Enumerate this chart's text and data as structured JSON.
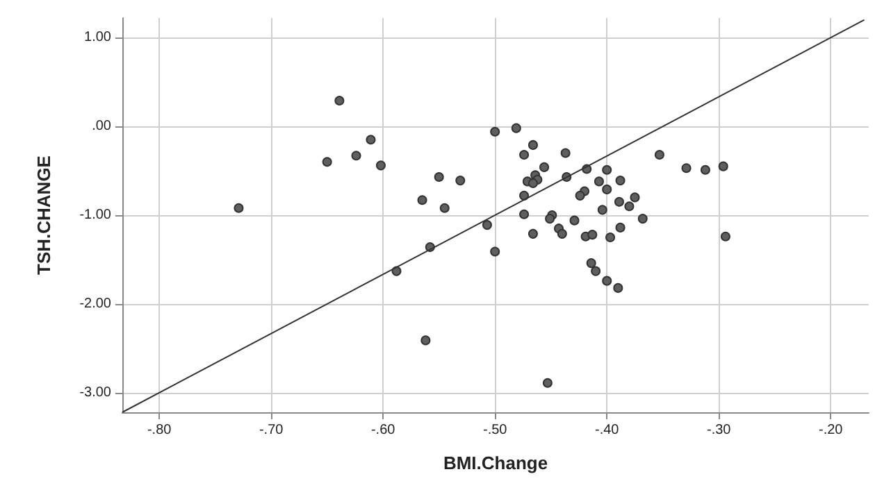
{
  "chart_data": {
    "type": "scatter",
    "xlabel": "BMI.Change",
    "ylabel": "TSH.CHANGE",
    "xlim": [
      -0.833,
      -0.166
    ],
    "ylim": [
      -3.22,
      1.22
    ],
    "xticks": [
      {
        "value": -0.8,
        "label": "-.80"
      },
      {
        "value": -0.7,
        "label": "-.70"
      },
      {
        "value": -0.6,
        "label": "-.60"
      },
      {
        "value": -0.5,
        "label": "-.50"
      },
      {
        "value": -0.4,
        "label": "-.40"
      },
      {
        "value": -0.3,
        "label": "-.30"
      },
      {
        "value": -0.2,
        "label": "-.20"
      }
    ],
    "yticks": [
      {
        "value": -3,
        "label": "-3.00"
      },
      {
        "value": -2,
        "label": "-2.00"
      },
      {
        "value": -1,
        "label": "-1.00"
      },
      {
        "value": 0,
        "label": ".00"
      },
      {
        "value": 1,
        "label": "1.00"
      }
    ],
    "grid": true,
    "marker": "circle",
    "series": [
      {
        "color": "#5f5f5f",
        "x": [
          -0.639,
          -0.5,
          -0.611,
          -0.624,
          -0.65,
          -0.602,
          -0.55,
          -0.531,
          -0.565,
          -0.545,
          -0.729,
          -0.507,
          -0.558,
          -0.5,
          -0.588,
          -0.562,
          -0.481,
          -0.466,
          -0.474,
          -0.437,
          -0.456,
          -0.418,
          -0.4,
          -0.353,
          -0.329,
          -0.312,
          -0.296,
          -0.464,
          -0.462,
          -0.471,
          -0.466,
          -0.436,
          -0.407,
          -0.388,
          -0.42,
          -0.424,
          -0.474,
          -0.4,
          -0.389,
          -0.375,
          -0.38,
          -0.404,
          -0.474,
          -0.449,
          -0.451,
          -0.429,
          -0.368,
          -0.443,
          -0.44,
          -0.466,
          -0.419,
          -0.413,
          -0.397,
          -0.388,
          -0.294,
          -0.414,
          -0.41,
          -0.4,
          -0.39,
          -0.453
        ],
        "values": [
          0.29,
          -0.06,
          -0.15,
          -0.33,
          -0.4,
          -0.44,
          -0.57,
          -0.61,
          -0.83,
          -0.92,
          -0.92,
          -1.11,
          -1.36,
          -1.41,
          -1.63,
          -2.41,
          -0.02,
          -0.21,
          -0.32,
          -0.3,
          -0.46,
          -0.48,
          -0.49,
          -0.32,
          -0.47,
          -0.49,
          -0.45,
          -0.55,
          -0.6,
          -0.62,
          -0.64,
          -0.57,
          -0.62,
          -0.61,
          -0.73,
          -0.78,
          -0.78,
          -0.71,
          -0.85,
          -0.8,
          -0.9,
          -0.94,
          -0.99,
          -1,
          -1.04,
          -1.06,
          -1.04,
          -1.15,
          -1.21,
          -1.21,
          -1.24,
          -1.22,
          -1.25,
          -1.14,
          -1.24,
          -1.54,
          -1.63,
          -1.74,
          -1.82,
          -2.89
        ]
      },
      {
        "type": "line",
        "color": "#333333",
        "marker": "none",
        "x": [
          -0.833,
          -0.17
        ],
        "values": [
          -3.22,
          1.2
        ]
      }
    ]
  }
}
